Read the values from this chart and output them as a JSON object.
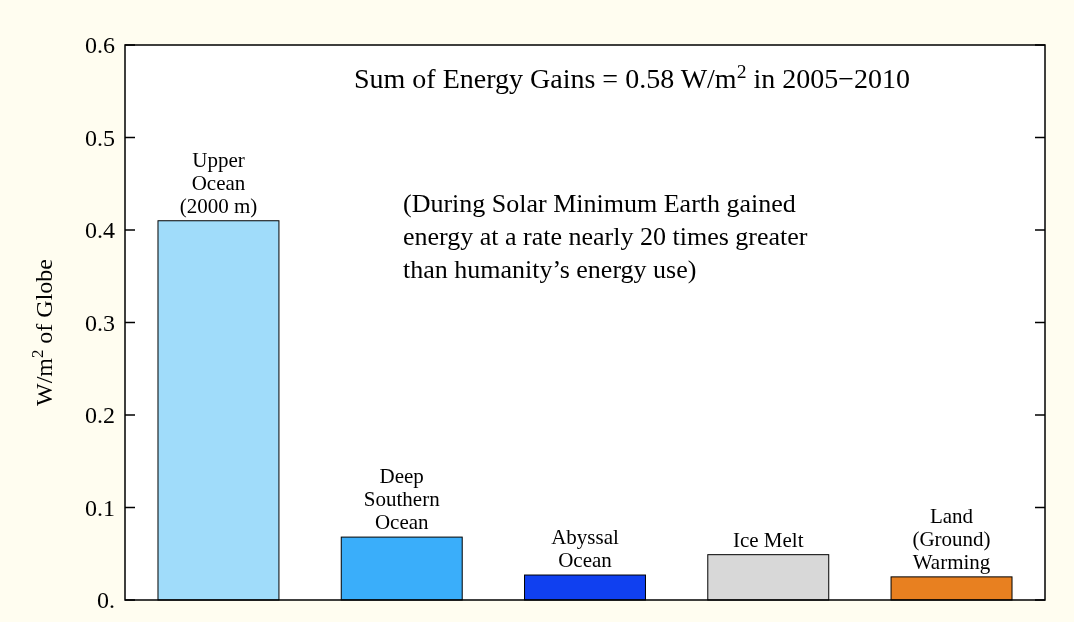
{
  "chart_data": {
    "type": "bar",
    "title": "Sum of Energy Gains = 0.58 W/m$^{2}$ in 2005−2010",
    "ylabel": "W/m$^{2}$ of Globe",
    "categories": [
      "Upper\nOcean\n(2000 m)",
      "Deep\nSouthern\nOcean",
      "Abyssal\nOcean",
      "Ice Melt",
      "Land\n(Ground)\nWarming"
    ],
    "values": [
      0.41,
      0.068,
      0.027,
      0.049,
      0.025
    ],
    "colors": [
      "#a0dcfa",
      "#3aaefa",
      "#1040f0",
      "#d8d8d8",
      "#e88020"
    ],
    "ylim": [
      0,
      0.6
    ],
    "yticks": [
      {
        "value": 0,
        "label": "0."
      },
      0.1,
      0.2,
      0.3,
      0.4,
      0.5,
      0.6
    ],
    "annotations": [
      "(During Solar Minimum Earth gained\nenergy at a rate nearly 20 times greater\nthan humanity’s energy use)"
    ],
    "tick_labels": "y"
  }
}
